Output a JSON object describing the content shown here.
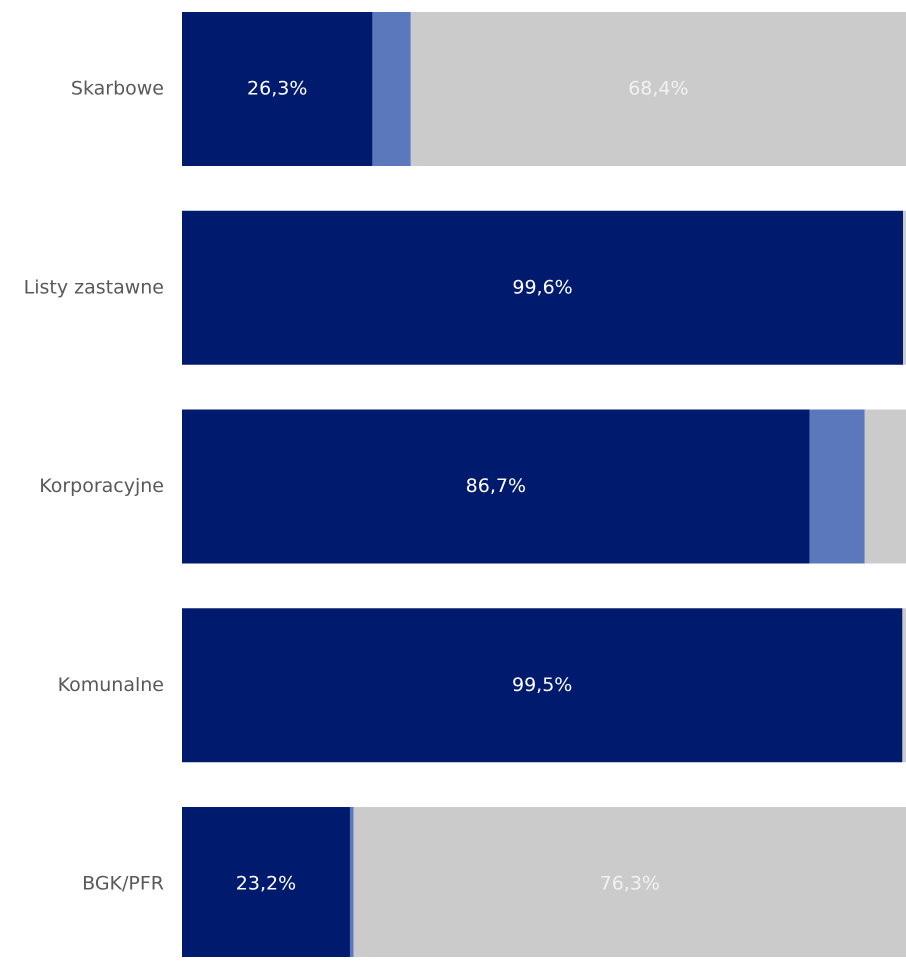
{
  "chart_data": {
    "type": "bar",
    "orientation": "horizontal",
    "stacked": true,
    "normalized": true,
    "categories": [
      "Skarbowe",
      "Listy zastawne",
      "Korporacyjne",
      "Komunalne",
      "BGK/PFR"
    ],
    "series": [
      {
        "values": [
          26.3,
          99.6,
          86.7,
          99.5,
          23.2
        ],
        "color": "#001A6E",
        "data_labels": [
          "26,3%",
          "99,6%",
          "86,7%",
          "99,5%",
          "23,2%"
        ],
        "label_color": "#FFFFFF"
      },
      {
        "values": [
          5.3,
          0.0,
          7.6,
          0.0,
          0.5
        ],
        "color": "#5B78BC",
        "data_labels": [
          "",
          "",
          "",
          "",
          ""
        ],
        "label_color": "#FFFFFF"
      },
      {
        "values": [
          68.4,
          0.4,
          5.7,
          0.5,
          76.3
        ],
        "color": "#CBCBCB",
        "data_labels": [
          "68,4%",
          "",
          "",
          "",
          "76,3%"
        ],
        "label_color": "#F2F2F2"
      }
    ],
    "xlim": [
      0,
      100
    ],
    "grid": false,
    "legend": "none",
    "title": "",
    "xlabel": "",
    "ylabel": "",
    "category_label_color": "#595959"
  }
}
